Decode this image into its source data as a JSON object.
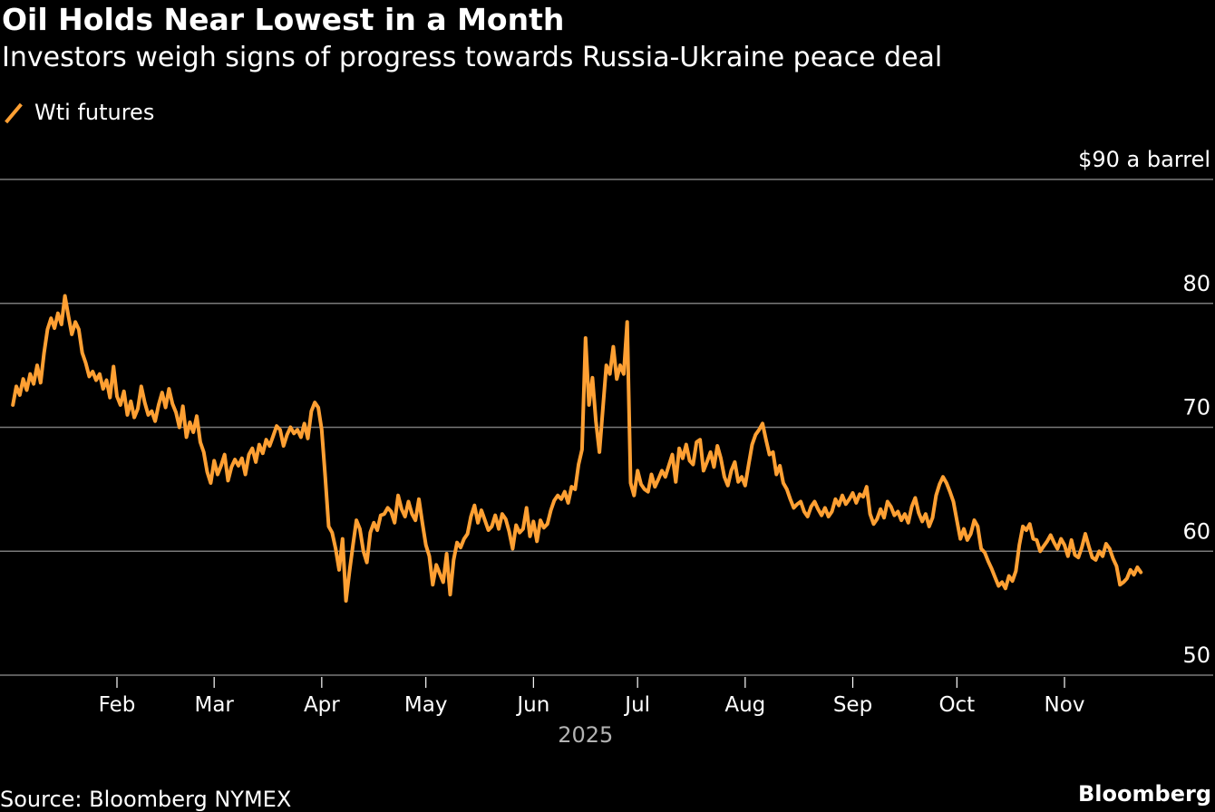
{
  "header": {
    "title": "Oil Holds Near Lowest in a Month",
    "subtitle": "Investors weigh signs of progress towards Russia-Ukraine peace deal"
  },
  "legend": {
    "label": "Wti futures",
    "color": "#ffa033"
  },
  "footer": {
    "source": "Source: Bloomberg NYMEX",
    "brand": "Bloomberg"
  },
  "chart_data": {
    "type": "line",
    "title": "Oil Holds Near Lowest in a Month",
    "subtitle": "Investors weigh signs of progress towards Russia-Ukraine peace deal",
    "xlabel": "2025",
    "ylabel": "$ a barrel",
    "ylim": [
      50,
      90
    ],
    "yticks": [
      50,
      60,
      70,
      80,
      90
    ],
    "ytick_labels": [
      "50",
      "60",
      "70",
      "80",
      "$90 a barrel"
    ],
    "xticks": [
      {
        "label": "Feb",
        "day": 31
      },
      {
        "label": "Mar",
        "day": 59
      },
      {
        "label": "Apr",
        "day": 90
      },
      {
        "label": "May",
        "day": 120
      },
      {
        "label": "Jun",
        "day": 151
      },
      {
        "label": "Jul",
        "day": 181
      },
      {
        "label": "Aug",
        "day": 212
      },
      {
        "label": "Sep",
        "day": 243
      },
      {
        "label": "Oct",
        "day": 273
      },
      {
        "label": "Nov",
        "day": 304
      }
    ],
    "year_label": "2025",
    "xlim_days": [
      -2,
      346
    ],
    "grid": true,
    "legend_position": "top-left",
    "series": [
      {
        "name": "Wti futures",
        "color": "#ffa033",
        "x_day_of_year": [
          1,
          2,
          3,
          4,
          5,
          6,
          7,
          8,
          9,
          10,
          11,
          12,
          13,
          14,
          15,
          16,
          17,
          18,
          19,
          20,
          21,
          22,
          23,
          24,
          25,
          26,
          27,
          28,
          29,
          30,
          31,
          32,
          33,
          34,
          35,
          36,
          37,
          38,
          39,
          40,
          41,
          42,
          43,
          44,
          45,
          46,
          47,
          48,
          49,
          50,
          51,
          52,
          53,
          54,
          55,
          56,
          57,
          58,
          59,
          60,
          61,
          62,
          63,
          64,
          65,
          66,
          67,
          68,
          69,
          70,
          71,
          72,
          73,
          74,
          75,
          76,
          77,
          78,
          79,
          80,
          81,
          82,
          83,
          84,
          85,
          86,
          87,
          88,
          89,
          90,
          91,
          92,
          93,
          94,
          95,
          96,
          97,
          98,
          99,
          100,
          101,
          102,
          103,
          104,
          105,
          106,
          107,
          108,
          109,
          110,
          111,
          112,
          113,
          114,
          115,
          116,
          117,
          118,
          119,
          120,
          121,
          122,
          123,
          124,
          125,
          126,
          127,
          128,
          129,
          130,
          131,
          132,
          133,
          134,
          135,
          136,
          137,
          138,
          139,
          140,
          141,
          142,
          143,
          144,
          145,
          146,
          147,
          148,
          149,
          150,
          151,
          152,
          153,
          154,
          155,
          156,
          157,
          158,
          159,
          160,
          161,
          162,
          163,
          164,
          165,
          166,
          167,
          168,
          169,
          170,
          171,
          172,
          173,
          174,
          175,
          176,
          177,
          178,
          179,
          180,
          181,
          182,
          183,
          184,
          185,
          186,
          187,
          188,
          189,
          190,
          191,
          192,
          193,
          194,
          195,
          196,
          197,
          198,
          199,
          200,
          201,
          202,
          203,
          204,
          205,
          206,
          207,
          208,
          209,
          210,
          211,
          212,
          213,
          214,
          215,
          216,
          217,
          218,
          219,
          220,
          221,
          222,
          223,
          224,
          225,
          226,
          227,
          228,
          229,
          230,
          231,
          232,
          233,
          234,
          235,
          236,
          237,
          238,
          239,
          240,
          241,
          242,
          243,
          244,
          245,
          246,
          247,
          248,
          249,
          250,
          251,
          252,
          253,
          254,
          255,
          256,
          257,
          258,
          259,
          260,
          261,
          262,
          263,
          264,
          265,
          266,
          267,
          268,
          269,
          270,
          271,
          272,
          273,
          274,
          275,
          276,
          277,
          278,
          279,
          280,
          281,
          282,
          283,
          284,
          285,
          286,
          287,
          288,
          289,
          290,
          291,
          292,
          293,
          294,
          295,
          296,
          297,
          298,
          299,
          300,
          301,
          302,
          303,
          304,
          305,
          306,
          307,
          308,
          309,
          310,
          311,
          312,
          313,
          314,
          315,
          316,
          317,
          318,
          319,
          320,
          321,
          322,
          323,
          324,
          325,
          326,
          327,
          328,
          329,
          330,
          331,
          332,
          333
        ],
        "values": [
          71.8,
          73.3,
          72.6,
          73.9,
          73.0,
          74.3,
          73.5,
          75.0,
          73.6,
          76.0,
          77.9,
          78.8,
          78.0,
          79.2,
          78.3,
          80.6,
          79.0,
          77.5,
          78.5,
          77.9,
          76.0,
          75.2,
          74.1,
          74.5,
          73.8,
          74.3,
          73.1,
          73.8,
          72.4,
          74.9,
          72.5,
          71.8,
          72.9,
          71.0,
          72.1,
          70.8,
          71.5,
          73.3,
          72.0,
          71.0,
          71.3,
          70.5,
          71.8,
          72.8,
          71.6,
          73.1,
          71.9,
          71.2,
          70.0,
          71.7,
          69.2,
          70.4,
          69.6,
          70.9,
          68.8,
          68.0,
          66.4,
          65.5,
          67.3,
          66.2,
          66.9,
          67.8,
          65.7,
          66.8,
          67.4,
          66.9,
          67.5,
          66.2,
          67.8,
          68.3,
          67.2,
          68.6,
          67.9,
          69.0,
          68.5,
          69.3,
          70.1,
          69.8,
          68.5,
          69.4,
          70.0,
          69.5,
          69.8,
          69.2,
          70.3,
          69.1,
          71.3,
          72.0,
          71.6,
          69.8,
          66.0,
          62.0,
          61.5,
          60.2,
          58.5,
          61.0,
          56.0,
          58.4,
          60.5,
          62.5,
          61.8,
          60.0,
          59.1,
          61.5,
          62.3,
          61.7,
          62.9,
          63.0,
          63.5,
          63.2,
          62.3,
          64.5,
          63.4,
          62.8,
          64.0,
          63.0,
          62.5,
          64.2,
          62.3,
          60.5,
          59.6,
          57.3,
          58.9,
          58.2,
          57.5,
          59.8,
          56.5,
          59.3,
          60.7,
          60.3,
          61.0,
          61.4,
          62.8,
          63.7,
          62.3,
          63.3,
          62.5,
          61.7,
          62.0,
          62.9,
          61.8,
          63.0,
          62.6,
          61.6,
          60.2,
          62.1,
          61.5,
          61.8,
          63.5,
          61.2,
          62.4,
          60.8,
          62.5,
          61.9,
          62.2,
          63.3,
          64.1,
          64.5,
          64.2,
          64.8,
          63.9,
          65.2,
          65.0,
          67.0,
          68.2,
          77.2,
          71.8,
          74.0,
          70.5,
          68.0,
          71.5,
          75.0,
          74.3,
          76.5,
          73.9,
          75.0,
          74.3,
          78.5,
          65.5,
          64.5,
          66.5,
          65.4,
          65.0,
          64.8,
          66.2,
          65.2,
          65.8,
          66.5,
          66.0,
          66.9,
          67.8,
          65.6,
          68.3,
          67.5,
          68.6,
          67.3,
          67.0,
          68.8,
          69.0,
          66.5,
          67.2,
          68.0,
          66.8,
          68.5,
          67.5,
          66.0,
          65.3,
          66.5,
          67.2,
          65.6,
          66.0,
          65.3,
          67.0,
          68.6,
          69.4,
          69.8,
          70.3,
          69.0,
          67.8,
          68.0,
          66.2,
          66.9,
          65.5,
          65.0,
          64.2,
          63.5,
          63.8,
          64.0,
          63.2,
          62.8,
          63.6,
          64.0,
          63.4,
          62.9,
          63.5,
          62.8,
          63.2,
          64.2,
          63.7,
          64.5,
          63.8,
          64.2,
          64.7,
          63.9,
          64.6,
          64.4,
          65.2,
          63.0,
          62.2,
          62.6,
          63.4,
          62.7,
          64.0,
          63.6,
          62.9,
          63.2,
          62.5,
          63.0,
          62.3,
          63.6,
          64.3,
          63.1,
          62.4,
          63.0,
          62.0,
          62.7,
          64.5,
          65.4,
          66.0,
          65.5,
          64.8,
          64.0,
          62.5,
          61.0,
          61.8,
          60.9,
          61.4,
          62.5,
          62.0,
          60.2,
          59.9,
          59.2,
          58.6,
          57.9,
          57.2,
          57.5,
          57.0,
          58.0,
          57.6,
          58.4,
          60.5,
          62.0,
          61.7,
          62.2,
          61.0,
          60.9,
          60.0,
          60.4,
          60.8,
          61.3,
          60.7,
          60.2,
          61.0,
          60.5,
          59.6,
          60.9,
          59.7,
          59.5,
          60.3,
          61.4,
          60.4,
          59.5,
          59.3,
          60.0,
          59.6,
          60.6,
          60.2,
          59.4,
          58.8,
          57.3,
          57.5,
          57.8,
          58.5,
          58.1,
          58.7,
          58.3
        ]
      }
    ]
  }
}
